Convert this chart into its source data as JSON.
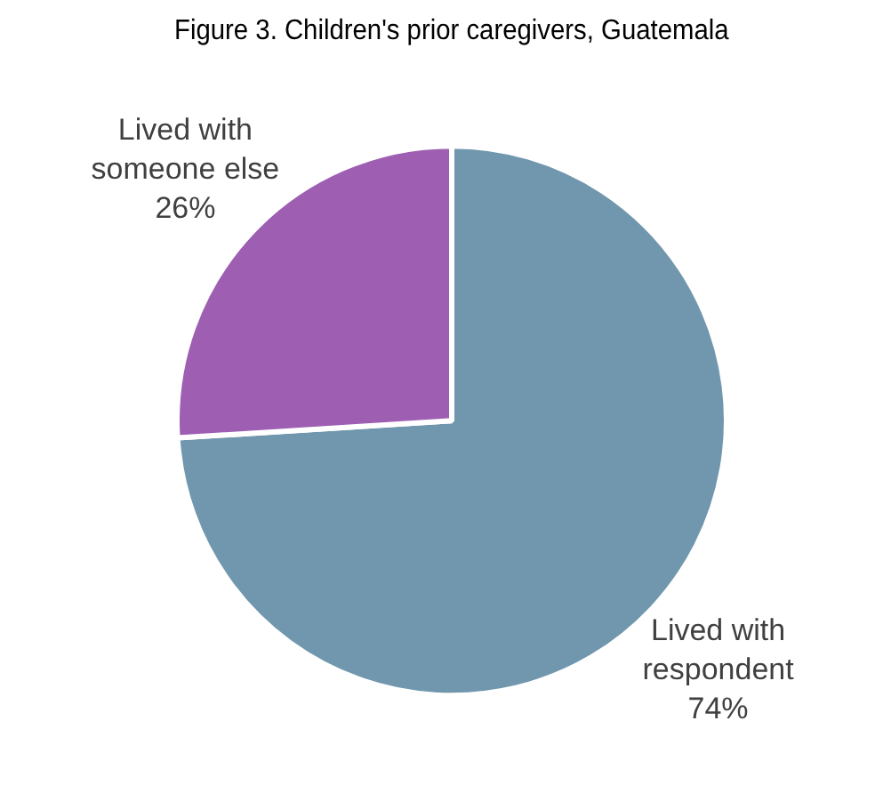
{
  "chart_data": {
    "type": "pie",
    "title": "Figure 3. Children's prior caregivers, Guatemala",
    "categories": [
      "Lived with respondent",
      "Lived with someone else"
    ],
    "values": [
      74,
      26
    ],
    "colors": [
      "#7197ae",
      "#9e5fb3"
    ],
    "value_labels": [
      "74%",
      "26%"
    ],
    "legend": false
  }
}
